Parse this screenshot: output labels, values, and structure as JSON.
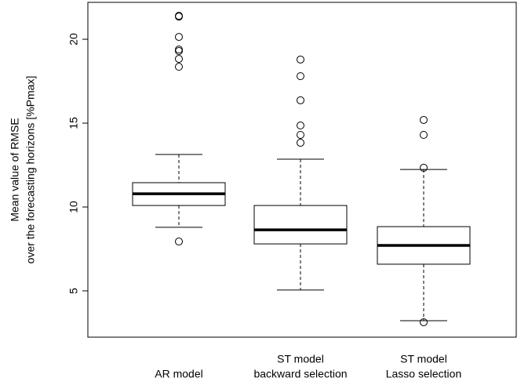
{
  "chart_data": {
    "type": "boxplot",
    "ylabel": [
      "Mean value of RMSE",
      "over the forecasting horizons [%Pmax]"
    ],
    "categories": [
      [
        "AR model"
      ],
      [
        "ST model",
        "backward selection"
      ],
      [
        "ST model",
        "Lasso selection"
      ]
    ],
    "boxes": [
      {
        "whisker_low": 8.79,
        "q1": 10.09,
        "median": 10.79,
        "q3": 11.45,
        "whisker_high": 13.13,
        "outliers": [
          7.94,
          21.35,
          21.4,
          20.14,
          19.39,
          19.3,
          18.83,
          18.36
        ]
      },
      {
        "whisker_low": 5.05,
        "q1": 7.8,
        "median": 8.64,
        "q3": 10.09,
        "whisker_high": 12.85,
        "outliers": [
          18.79,
          17.8,
          16.36,
          14.86,
          14.3,
          13.83
        ]
      },
      {
        "whisker_low": 3.22,
        "q1": 6.59,
        "median": 7.71,
        "q3": 8.83,
        "whisker_high": 12.24,
        "outliers": [
          15.19,
          14.3,
          12.34,
          3.13
        ]
      }
    ],
    "color": "#000000",
    "ylim": [
      2.24,
      22.2
    ],
    "yticks": [
      5,
      10,
      15,
      20
    ]
  }
}
